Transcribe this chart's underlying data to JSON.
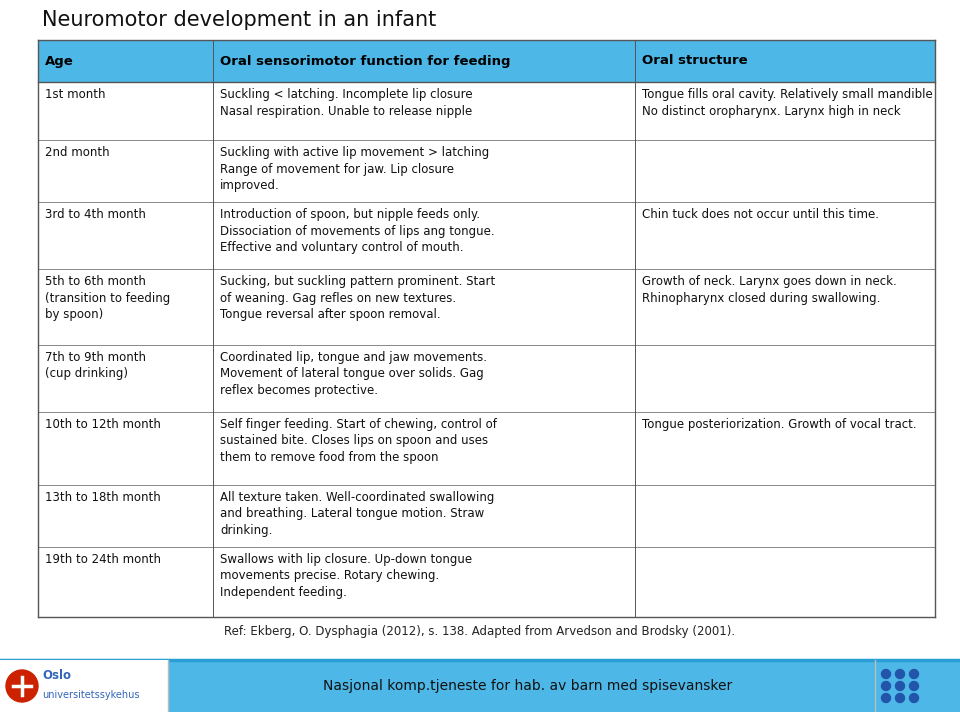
{
  "title": "Neuromotor development in an infant",
  "header_bg": "#4db8e8",
  "header_text_color": "#000000",
  "col_headers": [
    "Age",
    "Oral sensorimotor function for feeding",
    "Oral structure"
  ],
  "rows": [
    {
      "age": "1st month",
      "feeding": "Suckling < latching. Incomplete lip closure\nNasal respiration. Unable to release nipple",
      "structure": "Tongue fills oral cavity. Relatively small mandible\nNo distinct oropharynx. Larynx high in neck"
    },
    {
      "age": "2nd month",
      "feeding": "Suckling with active lip movement > latching\nRange of movement for jaw. Lip closure\nimproved.",
      "structure": ""
    },
    {
      "age": "3rd to 4th month",
      "feeding": "Introduction of spoon, but nipple feeds only.\nDissociation of movements of lips ang tongue.\nEffective and voluntary control of mouth.",
      "structure": "Chin tuck does not occur until this time."
    },
    {
      "age": "5th to 6th month\n(transition to feeding\nby spoon)",
      "feeding": "Sucking, but suckling pattern prominent. Start\nof weaning. Gag refles on new textures.\nTongue reversal after spoon removal.",
      "structure": "Growth of neck. Larynx goes down in neck.\nRhinopharynx closed during swallowing."
    },
    {
      "age": "7th to 9th month\n(cup drinking)",
      "feeding": "Coordinated lip, tongue and jaw movements.\nMovement of lateral tongue over solids. Gag\nreflex becomes protective.",
      "structure": ""
    },
    {
      "age": "10th to 12th month",
      "feeding": "Self finger feeding. Start of chewing, control of\nsustained bite. Closes lips on spoon and uses\nthem to remove food from the spoon",
      "structure": "Tongue posteriorization. Growth of vocal tract."
    },
    {
      "age": "13th to 18th month",
      "feeding": "All texture taken. Well-coordinated swallowing\nand breathing. Lateral tongue motion. Straw\ndrinking.",
      "structure": ""
    },
    {
      "age": "19th to 24th month",
      "feeding": "Swallows with lip closure. Up-down tongue\nmovements precise. Rotary chewing.\nIndependent feeding.",
      "structure": ""
    }
  ],
  "footer_text": "Ref: Ekberg, O. Dysphagia (2012), s. 138. Adapted from Arvedson and Brodsky (2001).",
  "bottom_bar_color": "#4db8e8",
  "bottom_text": "Nasjonal komp.tjeneste for hab. av barn med spisevansker",
  "oslo_text1": "Oslo",
  "oslo_text2": "universitetssykehus",
  "title_fontsize": 15,
  "header_fontsize": 9.5,
  "cell_fontsize": 8.5,
  "footer_fontsize": 8.5,
  "line_color": "#888888",
  "outer_line_color": "#555555"
}
